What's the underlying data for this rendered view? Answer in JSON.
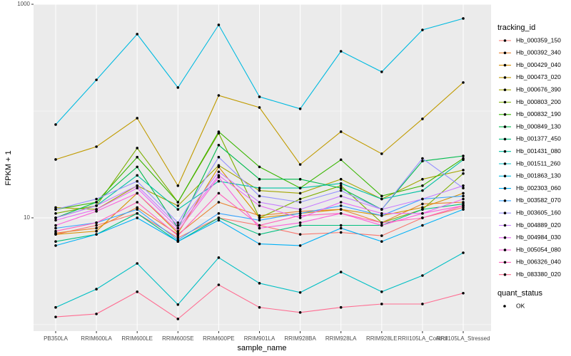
{
  "chart_data": {
    "type": "line",
    "x_label": "sample_name",
    "y_label": "FPKM + 1",
    "log_y": true,
    "grid": true,
    "legend_title": "tracking_id",
    "shape_legend": {
      "title": "quant_status",
      "labels": [
        "OK"
      ]
    },
    "point_color": "#000000",
    "categories": [
      "PB350LA",
      "RRIM600LA",
      "RRIM600LE",
      "RRIM600SE",
      "RRIM600PE",
      "RRIM901LA",
      "RRIM928BA",
      "RRIM928LA",
      "RRIM928LE",
      "RRII105LA_Control",
      "RRII105LA_Stressed"
    ],
    "ylim": [
      0.87,
      1000
    ],
    "yticks": [
      10,
      1000
    ],
    "minor_yticks": [
      1,
      100
    ],
    "series": [
      {
        "name": "Hb_000359_150",
        "color": "#F8766D",
        "values": [
          7,
          8.5,
          11,
          6.5,
          10,
          8.5,
          7,
          7.3,
          6.8,
          10,
          12.5
        ]
      },
      {
        "name": "Hb_000392_340",
        "color": "#EA8331",
        "values": [
          7.2,
          8,
          12.5,
          7,
          14,
          10.5,
          11.5,
          12,
          9,
          13.5,
          14
        ]
      },
      {
        "name": "Hb_000429_040",
        "color": "#D89000",
        "values": [
          7,
          7.5,
          17,
          7.2,
          30,
          10,
          11,
          12,
          10.5,
          12.5,
          17
        ]
      },
      {
        "name": "Hb_000473_020",
        "color": "#C09B00",
        "values": [
          35.2,
          46.4,
          85.8,
          20,
          140,
          108,
          31.6,
          64.1,
          39.8,
          84.5,
          185
        ]
      },
      {
        "name": "Hb_000676_390",
        "color": "#A3A500",
        "values": [
          12.5,
          12,
          20,
          13,
          31,
          18,
          17,
          23,
          15,
          23,
          28
        ]
      },
      {
        "name": "Hb_000803_200",
        "color": "#7CAE00",
        "values": [
          11,
          13,
          45,
          14,
          62,
          10,
          15,
          20,
          9,
          12,
          26
        ]
      },
      {
        "name": "Hb_000832_190",
        "color": "#39B600",
        "values": [
          12,
          14,
          37,
          14,
          64,
          30,
          19,
          35,
          16,
          20,
          36
        ]
      },
      {
        "name": "Hb_000849_130",
        "color": "#00BB4E",
        "values": [
          10,
          14,
          30,
          8,
          48,
          23,
          23,
          19,
          12,
          34,
          38
        ]
      },
      {
        "name": "Hb_001377_450",
        "color": "#00BF7D",
        "values": [
          6,
          7,
          11,
          6,
          10,
          7,
          8.5,
          8.5,
          8.5,
          12,
          13.5
        ]
      },
      {
        "name": "Hb_001431_080",
        "color": "#00C1A3",
        "values": [
          10,
          13,
          25,
          12,
          22,
          19,
          19,
          21,
          15,
          18,
          35
        ]
      },
      {
        "name": "Hb_001511_260",
        "color": "#00BFC4",
        "values": [
          1.45,
          2.15,
          3.74,
          1.54,
          4.24,
          2.44,
          2.0,
          3.11,
          2.03,
          2.88,
          4.71
        ]
      },
      {
        "name": "Hb_001863_130",
        "color": "#00BAE0",
        "values": [
          74.7,
          196,
          525,
          166,
          641,
          136,
          105,
          363,
          233,
          575,
          736
        ]
      },
      {
        "name": "Hb_002303_060",
        "color": "#00B0F6",
        "values": [
          5.5,
          7,
          10,
          6,
          9.5,
          5.7,
          5.5,
          8,
          6,
          8.5,
          12
        ]
      },
      {
        "name": "Hb_003582_070",
        "color": "#35A2FF",
        "values": [
          8,
          9,
          12,
          6.2,
          11,
          9.5,
          11,
          13,
          10.5,
          15,
          16
        ]
      },
      {
        "name": "Hb_003605_160",
        "color": "#9590FF",
        "values": [
          12,
          15,
          22,
          9,
          37,
          16,
          14,
          18,
          12,
          36,
          19
        ]
      },
      {
        "name": "Hb_004889_020",
        "color": "#C77CFF",
        "values": [
          10,
          13,
          20,
          8.5,
          27,
          14,
          12,
          16,
          12,
          15,
          20
        ]
      },
      {
        "name": "Hb_004984_030",
        "color": "#E76BF3",
        "values": [
          9.5,
          12,
          19,
          8,
          25,
          13,
          10,
          14,
          11,
          11,
          15
        ]
      },
      {
        "name": "Hb_005054_080",
        "color": "#FA62DB",
        "values": [
          8.5,
          11.5,
          17,
          7.5,
          24,
          8,
          9,
          11,
          8.5,
          11,
          13
        ]
      },
      {
        "name": "Hb_006326_040",
        "color": "#FF62BC",
        "values": [
          7.5,
          9,
          14,
          6.8,
          17,
          8.5,
          10.5,
          11,
          9,
          10,
          13
        ]
      },
      {
        "name": "Hb_083380_020",
        "color": "#FF6C91",
        "values": [
          1.18,
          1.26,
          2.03,
          1.13,
          2.36,
          1.45,
          1.3,
          1.45,
          1.56,
          1.56,
          1.97
        ]
      }
    ]
  }
}
